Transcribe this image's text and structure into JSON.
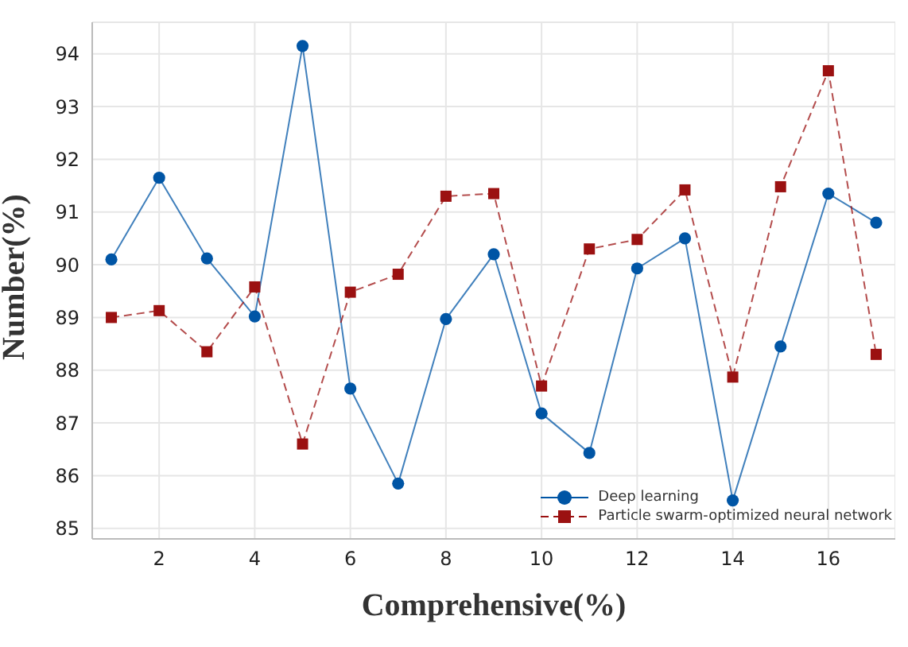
{
  "chart_data": {
    "type": "line",
    "xlabel": "Comprehensive(%)",
    "ylabel": "Number(%)",
    "x": [
      1,
      2,
      3,
      4,
      5,
      6,
      7,
      8,
      9,
      10,
      11,
      12,
      13,
      14,
      15,
      16,
      17
    ],
    "series": [
      {
        "name": "Deep learning",
        "color": "#0055a5",
        "marker": "circle",
        "line_style": "solid",
        "values": [
          90.1,
          91.65,
          90.12,
          89.02,
          94.15,
          87.65,
          85.85,
          88.97,
          90.2,
          87.18,
          86.43,
          89.93,
          90.5,
          85.53,
          88.45,
          91.35,
          90.8
        ]
      },
      {
        "name": "Particle swarm-optimized neural network",
        "color": "#9b1111",
        "marker": "square",
        "line_style": "dashed",
        "values": [
          89.0,
          89.13,
          88.35,
          89.58,
          86.6,
          89.48,
          89.82,
          91.3,
          91.35,
          87.7,
          90.3,
          90.48,
          91.42,
          87.87,
          91.48,
          93.68,
          88.3
        ]
      }
    ],
    "xlim": [
      0.6,
      17.4
    ],
    "xticks": [
      2,
      4,
      6,
      8,
      10,
      12,
      14,
      16
    ],
    "ylim": [
      84.8,
      94.6
    ],
    "yticks": [
      85,
      86,
      87,
      88,
      89,
      90,
      91,
      92,
      93,
      94
    ],
    "grid": true,
    "legend": "bottom right"
  }
}
